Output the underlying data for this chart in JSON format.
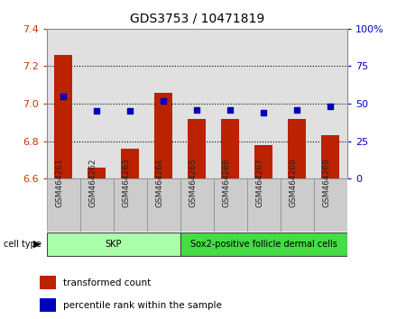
{
  "title": "GDS3753 / 10471819",
  "samples": [
    "GSM464261",
    "GSM464262",
    "GSM464263",
    "GSM464264",
    "GSM464265",
    "GSM464266",
    "GSM464267",
    "GSM464268",
    "GSM464269"
  ],
  "transformed_count": [
    7.26,
    6.66,
    6.76,
    7.06,
    6.92,
    6.92,
    6.78,
    6.92,
    6.83
  ],
  "percentile_rank": [
    55,
    45,
    45,
    52,
    46,
    46,
    44,
    46,
    48
  ],
  "ylim_left": [
    6.6,
    7.4
  ],
  "ylim_right": [
    0,
    100
  ],
  "yticks_left": [
    6.6,
    6.8,
    7.0,
    7.2,
    7.4
  ],
  "yticks_right": [
    0,
    25,
    50,
    75,
    100
  ],
  "ytick_labels_right": [
    "0",
    "25",
    "50",
    "75",
    "100%"
  ],
  "gridlines_at": [
    6.8,
    7.0,
    7.2
  ],
  "bar_color": "#bb2200",
  "dot_color": "#0000bb",
  "cell_groups": [
    {
      "label": "SKP",
      "start": 0,
      "end": 3,
      "color": "#aaffaa"
    },
    {
      "label": "Sox2-positive follicle dermal cells",
      "start": 4,
      "end": 8,
      "color": "#44dd44"
    }
  ],
  "cell_type_label": "cell type",
  "legend_bar_label": "transformed count",
  "legend_dot_label": "percentile rank within the sample",
  "bar_width": 0.55,
  "baseline": 6.6,
  "bg_color": "#ffffff",
  "tick_label_color_left": "#cc3300",
  "tick_label_color_right": "#0000cc",
  "column_bg_color": "#cccccc",
  "figsize": [
    4.5,
    3.54
  ],
  "dpi": 100
}
